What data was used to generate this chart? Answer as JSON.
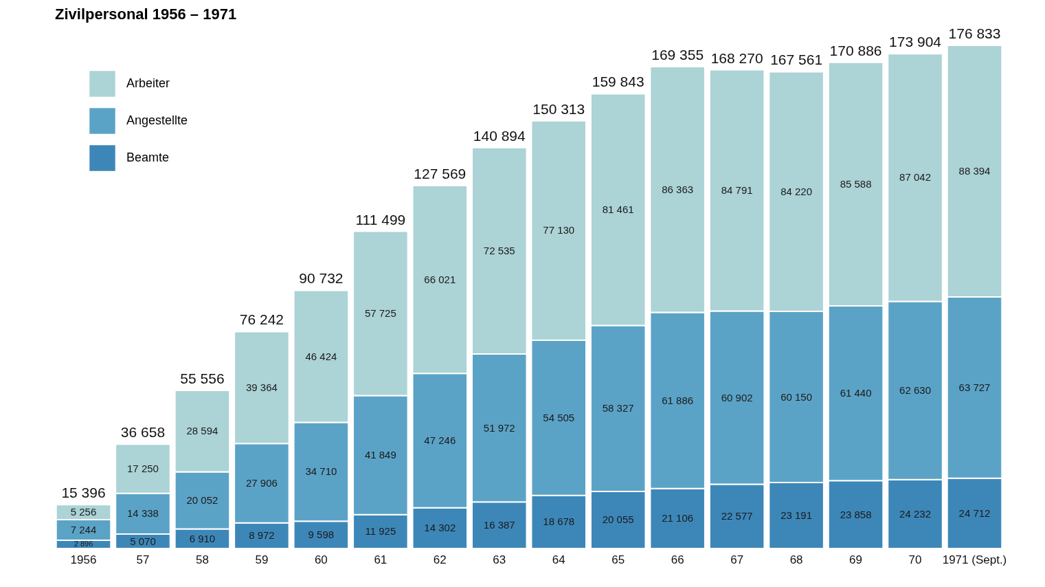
{
  "chart_data": {
    "type": "bar",
    "title": "Zivilpersonal 1956 – 1971",
    "stacked": true,
    "legend": "top left",
    "tick_labels": "x",
    "grid": false,
    "categories": [
      "1956",
      "57",
      "58",
      "59",
      "60",
      "61",
      "62",
      "63",
      "64",
      "65",
      "66",
      "67",
      "68",
      "69",
      "70",
      "1971 (Sept.)"
    ],
    "series": [
      {
        "name": "Beamte",
        "color": "#3d87b8",
        "values": [
          2896,
          5070,
          6910,
          8972,
          9598,
          11925,
          14302,
          16387,
          18678,
          20055,
          21106,
          22577,
          23191,
          23858,
          24232,
          24712
        ],
        "value_labels": [
          "2 896",
          "5 070",
          "6 910",
          "8 972",
          "9 598",
          "11 925",
          "14 302",
          "16 387",
          "18 678",
          "20 055",
          "21 106",
          "22 577",
          "23 191",
          "23 858",
          "24 232",
          "24 712"
        ]
      },
      {
        "name": "Angestellte",
        "color": "#5ba3c6",
        "values": [
          7244,
          14338,
          20052,
          27906,
          34710,
          41849,
          47246,
          51972,
          54505,
          58327,
          61886,
          60902,
          60150,
          61440,
          62630,
          63727
        ],
        "value_labels": [
          "7 244",
          "14 338",
          "20 052",
          "27 906",
          "34 710",
          "41 849",
          "47 246",
          "51 972",
          "54 505",
          "58 327",
          "61 886",
          "60 902",
          "60 150",
          "61 440",
          "62 630",
          "63 727"
        ]
      },
      {
        "name": "Arbeiter",
        "color": "#acd3d6",
        "values": [
          5256,
          17250,
          28594,
          39364,
          46424,
          57725,
          66021,
          72535,
          77130,
          81461,
          86363,
          84791,
          84220,
          85588,
          87042,
          88394
        ],
        "value_labels": [
          "5 256",
          "17 250",
          "28 594",
          "39 364",
          "46 424",
          "57 725",
          "66 021",
          "72 535",
          "77 130",
          "81 461",
          "86 363",
          "84 791",
          "84 220",
          "85 588",
          "87 042",
          "88 394"
        ]
      }
    ],
    "totals": [
      "15 396",
      "36 658",
      "55 556",
      "76 242",
      "90 732",
      "111 499",
      "127 569",
      "140 894",
      "150 313",
      "159 843",
      "169 355",
      "168 270",
      "167 561",
      "170 886",
      "173 904",
      "176 833"
    ]
  }
}
